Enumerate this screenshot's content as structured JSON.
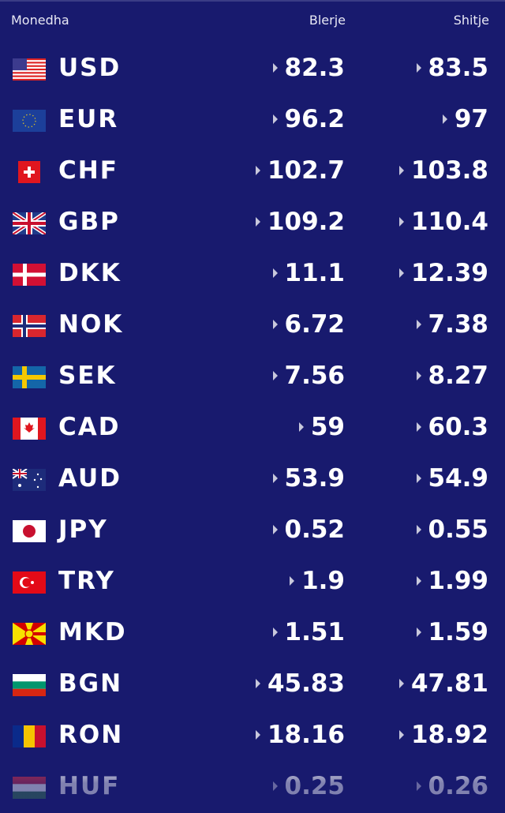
{
  "header": {
    "currency": "Monedha",
    "buy": "Blerje",
    "sell": "Shitje"
  },
  "colors": {
    "background": "#181a6e",
    "text": "#ffffff"
  },
  "rates": [
    {
      "code": "USD",
      "flag": "us-flag",
      "buy": "82.3",
      "sell": "83.5"
    },
    {
      "code": "EUR",
      "flag": "eu-flag",
      "buy": "96.2",
      "sell": "97"
    },
    {
      "code": "CHF",
      "flag": "ch-flag",
      "buy": "102.7",
      "sell": "103.8"
    },
    {
      "code": "GBP",
      "flag": "gb-flag",
      "buy": "109.2",
      "sell": "110.4"
    },
    {
      "code": "DKK",
      "flag": "dk-flag",
      "buy": "11.1",
      "sell": "12.39"
    },
    {
      "code": "NOK",
      "flag": "no-flag",
      "buy": "6.72",
      "sell": "7.38"
    },
    {
      "code": "SEK",
      "flag": "se-flag",
      "buy": "7.56",
      "sell": "8.27"
    },
    {
      "code": "CAD",
      "flag": "ca-flag",
      "buy": "59",
      "sell": "60.3"
    },
    {
      "code": "AUD",
      "flag": "au-flag",
      "buy": "53.9",
      "sell": "54.9"
    },
    {
      "code": "JPY",
      "flag": "jp-flag",
      "buy": "0.52",
      "sell": "0.55"
    },
    {
      "code": "TRY",
      "flag": "tr-flag",
      "buy": "1.9",
      "sell": "1.99"
    },
    {
      "code": "MKD",
      "flag": "mk-flag",
      "buy": "1.51",
      "sell": "1.59"
    },
    {
      "code": "BGN",
      "flag": "bg-flag",
      "buy": "45.83",
      "sell": "47.81"
    },
    {
      "code": "RON",
      "flag": "ro-flag",
      "buy": "18.16",
      "sell": "18.92"
    },
    {
      "code": "HUF",
      "flag": "hu-flag",
      "buy": "0.25",
      "sell": "0.26"
    }
  ]
}
